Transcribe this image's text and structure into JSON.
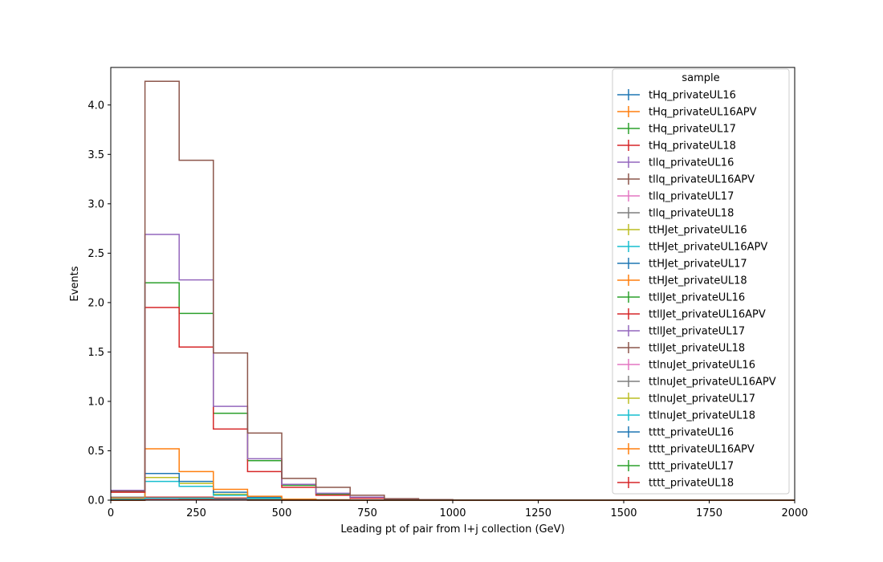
{
  "chart_data": {
    "type": "step histogram",
    "xlabel": "Leading pt of pair from l+j collection (GeV)",
    "ylabel": "Events",
    "xlim": [
      0,
      2000
    ],
    "ylim": [
      0,
      4.38
    ],
    "xticks": [
      0,
      250,
      500,
      750,
      1000,
      1250,
      1500,
      1750,
      2000
    ],
    "yticks": [
      0.0,
      0.5,
      1.0,
      1.5,
      2.0,
      2.5,
      3.0,
      3.5,
      4.0
    ],
    "bin_edges": [
      0,
      100,
      200,
      300,
      400,
      500,
      600,
      700,
      800,
      900,
      1000,
      1100,
      1200,
      1300,
      1400,
      1500,
      1600,
      1700,
      1800,
      1900,
      2000
    ],
    "legend_title": "sample",
    "legend_position": "upper right",
    "series": [
      {
        "name": "tHq_privateUL16",
        "color": "#1f77b4",
        "values": [
          0.01,
          0.02,
          0.02,
          0.01,
          0.005,
          0.002,
          0.001,
          0,
          0,
          0,
          0,
          0,
          0,
          0,
          0,
          0,
          0,
          0,
          0,
          0
        ]
      },
      {
        "name": "tHq_privateUL16APV",
        "color": "#ff7f0e",
        "values": [
          0.01,
          0.02,
          0.02,
          0.01,
          0.005,
          0.002,
          0.001,
          0,
          0,
          0,
          0,
          0,
          0,
          0,
          0,
          0,
          0,
          0,
          0,
          0
        ]
      },
      {
        "name": "tHq_privateUL17",
        "color": "#2ca02c",
        "values": [
          0.01,
          0.02,
          0.03,
          0.02,
          0.01,
          0.003,
          0.001,
          0,
          0,
          0,
          0,
          0,
          0,
          0,
          0,
          0,
          0,
          0,
          0,
          0
        ]
      },
      {
        "name": "tHq_privateUL18",
        "color": "#d62728",
        "values": [
          0.01,
          0.03,
          0.03,
          0.02,
          0.01,
          0.004,
          0.001,
          0,
          0,
          0,
          0,
          0,
          0,
          0,
          0,
          0,
          0,
          0,
          0,
          0
        ]
      },
      {
        "name": "tllq_privateUL16",
        "color": "#9467bd",
        "values": [
          0.02,
          0.01,
          0.01,
          0.005,
          0.002,
          0.001,
          0,
          0,
          0,
          0,
          0,
          0,
          0,
          0,
          0,
          0,
          0,
          0,
          0,
          0
        ]
      },
      {
        "name": "tllq_privateUL16APV",
        "color": "#8c564b",
        "values": [
          0.02,
          0.01,
          0.01,
          0.005,
          0.002,
          0.001,
          0,
          0,
          0,
          0,
          0,
          0,
          0,
          0,
          0,
          0,
          0,
          0,
          0,
          0
        ]
      },
      {
        "name": "tllq_privateUL17",
        "color": "#e377c2",
        "values": [
          0.02,
          0.01,
          0.01,
          0.005,
          0.002,
          0.001,
          0,
          0,
          0,
          0,
          0,
          0,
          0,
          0,
          0,
          0,
          0,
          0,
          0,
          0
        ]
      },
      {
        "name": "tllq_privateUL18",
        "color": "#7f7f7f",
        "values": [
          0.03,
          0.02,
          0.01,
          0.005,
          0.002,
          0.001,
          0,
          0,
          0,
          0,
          0,
          0,
          0,
          0,
          0,
          0,
          0,
          0,
          0,
          0
        ]
      },
      {
        "name": "ttHJet_privateUL16",
        "color": "#bcbd22",
        "values": [
          0.01,
          0.23,
          0.17,
          0.06,
          0.02,
          0.005,
          0.002,
          0.001,
          0,
          0,
          0,
          0,
          0,
          0,
          0,
          0,
          0,
          0,
          0,
          0
        ]
      },
      {
        "name": "ttHJet_privateUL16APV",
        "color": "#17becf",
        "values": [
          0.01,
          0.19,
          0.14,
          0.05,
          0.02,
          0.005,
          0.002,
          0.001,
          0,
          0,
          0,
          0,
          0,
          0,
          0,
          0,
          0,
          0,
          0,
          0
        ]
      },
      {
        "name": "ttHJet_privateUL17",
        "color": "#1f77b4",
        "values": [
          0.02,
          0.27,
          0.19,
          0.08,
          0.03,
          0.008,
          0.003,
          0.001,
          0,
          0,
          0,
          0,
          0,
          0,
          0,
          0,
          0,
          0,
          0,
          0
        ]
      },
      {
        "name": "ttHJet_privateUL18",
        "color": "#ff7f0e",
        "values": [
          0.02,
          0.52,
          0.29,
          0.11,
          0.04,
          0.01,
          0.004,
          0.001,
          0,
          0,
          0,
          0,
          0,
          0,
          0,
          0,
          0,
          0,
          0,
          0
        ]
      },
      {
        "name": "ttllJet_privateUL16",
        "color": "#2ca02c",
        "values": [
          0.1,
          2.2,
          1.89,
          0.88,
          0.4,
          0.15,
          0.06,
          0.03,
          0.01,
          0.003,
          0.001,
          0,
          0,
          0,
          0,
          0,
          0,
          0,
          0,
          0
        ]
      },
      {
        "name": "ttllJet_privateUL16APV",
        "color": "#d62728",
        "values": [
          0.08,
          1.95,
          1.55,
          0.72,
          0.29,
          0.13,
          0.05,
          0.02,
          0.008,
          0.003,
          0.001,
          0,
          0,
          0,
          0,
          0,
          0,
          0,
          0,
          0
        ]
      },
      {
        "name": "ttllJet_privateUL17",
        "color": "#9467bd",
        "values": [
          0.1,
          2.69,
          2.23,
          0.95,
          0.42,
          0.16,
          0.07,
          0.03,
          0.01,
          0.004,
          0.001,
          0,
          0,
          0,
          0,
          0,
          0,
          0,
          0,
          0
        ]
      },
      {
        "name": "ttllJet_privateUL18",
        "color": "#8c564b",
        "values": [
          0.09,
          4.24,
          3.44,
          1.49,
          0.68,
          0.22,
          0.13,
          0.05,
          0.015,
          0.005,
          0.002,
          0,
          0,
          0,
          0,
          0,
          0,
          0,
          0,
          0
        ]
      },
      {
        "name": "ttlnuJet_privateUL16",
        "color": "#e377c2",
        "values": [
          0.01,
          0.02,
          0.02,
          0.01,
          0.005,
          0.002,
          0.001,
          0,
          0,
          0,
          0,
          0,
          0,
          0,
          0,
          0,
          0,
          0,
          0,
          0
        ]
      },
      {
        "name": "ttlnuJet_privateUL16APV",
        "color": "#7f7f7f",
        "values": [
          0.01,
          0.02,
          0.02,
          0.01,
          0.005,
          0.002,
          0.001,
          0,
          0,
          0,
          0,
          0,
          0,
          0,
          0,
          0,
          0,
          0,
          0,
          0
        ]
      },
      {
        "name": "ttlnuJet_privateUL17",
        "color": "#bcbd22",
        "values": [
          0.01,
          0.02,
          0.02,
          0.01,
          0.005,
          0.002,
          0.001,
          0,
          0,
          0,
          0,
          0,
          0,
          0,
          0,
          0,
          0,
          0,
          0,
          0
        ]
      },
      {
        "name": "ttlnuJet_privateUL18",
        "color": "#17becf",
        "values": [
          0.01,
          0.02,
          0.02,
          0.01,
          0.005,
          0.002,
          0.001,
          0,
          0,
          0,
          0,
          0,
          0,
          0,
          0,
          0,
          0,
          0,
          0,
          0
        ]
      },
      {
        "name": "tttt_privateUL16",
        "color": "#1f77b4",
        "values": [
          0,
          0.002,
          0.003,
          0.002,
          0.001,
          0,
          0,
          0,
          0,
          0,
          0,
          0,
          0,
          0,
          0,
          0,
          0,
          0,
          0,
          0
        ]
      },
      {
        "name": "tttt_privateUL16APV",
        "color": "#ff7f0e",
        "values": [
          0,
          0.002,
          0.003,
          0.002,
          0.001,
          0,
          0,
          0,
          0,
          0,
          0,
          0,
          0,
          0,
          0,
          0,
          0,
          0,
          0,
          0
        ]
      },
      {
        "name": "tttt_privateUL17",
        "color": "#2ca02c",
        "values": [
          0,
          0.002,
          0.003,
          0.002,
          0.001,
          0,
          0,
          0,
          0,
          0,
          0,
          0,
          0,
          0,
          0,
          0,
          0,
          0,
          0,
          0
        ]
      },
      {
        "name": "tttt_privateUL18",
        "color": "#d62728",
        "values": [
          0,
          0.003,
          0.004,
          0.003,
          0.001,
          0,
          0,
          0,
          0,
          0,
          0,
          0,
          0,
          0,
          0,
          0,
          0,
          0,
          0,
          0
        ]
      }
    ]
  }
}
